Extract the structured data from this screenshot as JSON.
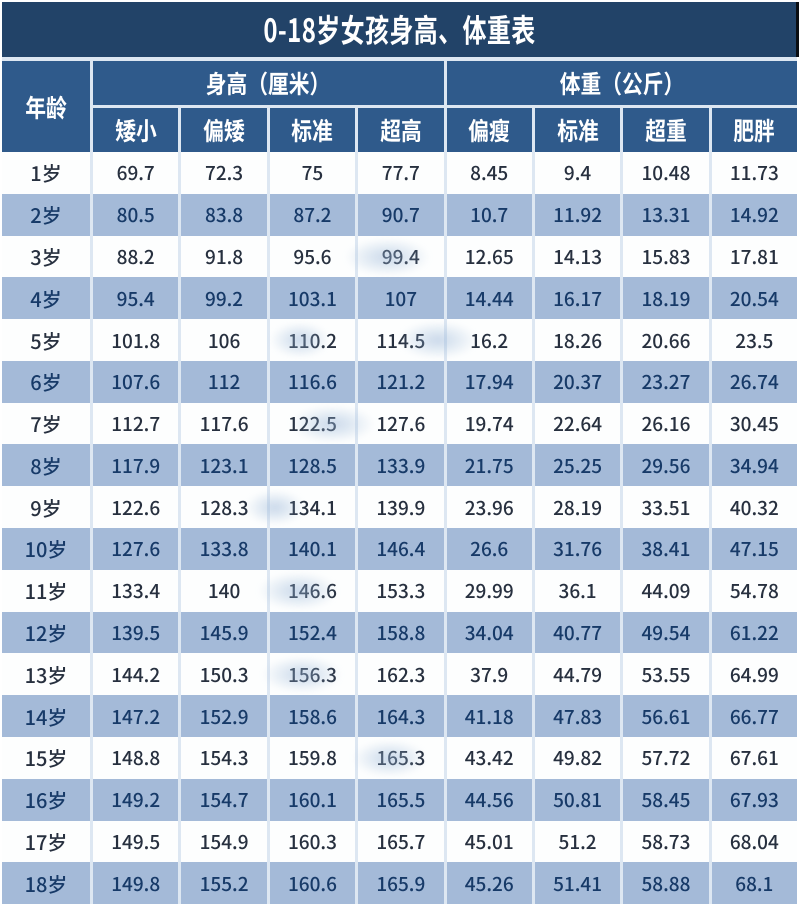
{
  "title": "0-18岁女孩身高、体重表",
  "table": {
    "age_header": "年龄",
    "groups": [
      {
        "label": "身高（厘米）",
        "sub": [
          "矮小",
          "偏矮",
          "标准",
          "超高"
        ]
      },
      {
        "label": "体重（公斤）",
        "sub": [
          "偏瘦",
          "标准",
          "超重",
          "肥胖"
        ]
      }
    ],
    "rows": [
      {
        "age": "1岁",
        "values": [
          "69.7",
          "72.3",
          "75",
          "77.7",
          "8.45",
          "9.4",
          "10.48",
          "11.73"
        ]
      },
      {
        "age": "2岁",
        "values": [
          "80.5",
          "83.8",
          "87.2",
          "90.7",
          "10.7",
          "11.92",
          "13.31",
          "14.92"
        ]
      },
      {
        "age": "3岁",
        "values": [
          "88.2",
          "91.8",
          "95.6",
          "99.4",
          "12.65",
          "14.13",
          "15.83",
          "17.81"
        ]
      },
      {
        "age": "4岁",
        "values": [
          "95.4",
          "99.2",
          "103.1",
          "107",
          "14.44",
          "16.17",
          "18.19",
          "20.54"
        ]
      },
      {
        "age": "5岁",
        "values": [
          "101.8",
          "106",
          "110.2",
          "114.5",
          "16.2",
          "18.26",
          "20.66",
          "23.5"
        ]
      },
      {
        "age": "6岁",
        "values": [
          "107.6",
          "112",
          "116.6",
          "121.2",
          "17.94",
          "20.37",
          "23.27",
          "26.74"
        ]
      },
      {
        "age": "7岁",
        "values": [
          "112.7",
          "117.6",
          "122.5",
          "127.6",
          "19.74",
          "22.64",
          "26.16",
          "30.45"
        ]
      },
      {
        "age": "8岁",
        "values": [
          "117.9",
          "123.1",
          "128.5",
          "133.9",
          "21.75",
          "25.25",
          "29.56",
          "34.94"
        ]
      },
      {
        "age": "9岁",
        "values": [
          "122.6",
          "128.3",
          "134.1",
          "139.9",
          "23.96",
          "28.19",
          "33.51",
          "40.32"
        ]
      },
      {
        "age": "10岁",
        "values": [
          "127.6",
          "133.8",
          "140.1",
          "146.4",
          "26.6",
          "31.76",
          "38.41",
          "47.15"
        ]
      },
      {
        "age": "11岁",
        "values": [
          "133.4",
          "140",
          "146.6",
          "153.3",
          "29.99",
          "36.1",
          "44.09",
          "54.78"
        ]
      },
      {
        "age": "12岁",
        "values": [
          "139.5",
          "145.9",
          "152.4",
          "158.8",
          "34.04",
          "40.77",
          "49.54",
          "61.22"
        ]
      },
      {
        "age": "13岁",
        "values": [
          "144.2",
          "150.3",
          "156.3",
          "162.3",
          "37.9",
          "44.79",
          "53.55",
          "64.99"
        ]
      },
      {
        "age": "14岁",
        "values": [
          "147.2",
          "152.9",
          "158.6",
          "164.3",
          "41.18",
          "47.83",
          "56.61",
          "66.77"
        ]
      },
      {
        "age": "15岁",
        "values": [
          "148.8",
          "154.3",
          "159.8",
          "165.3",
          "43.42",
          "49.82",
          "57.72",
          "67.61"
        ]
      },
      {
        "age": "16岁",
        "values": [
          "149.2",
          "154.7",
          "160.1",
          "165.5",
          "44.56",
          "50.81",
          "58.45",
          "67.93"
        ]
      },
      {
        "age": "17岁",
        "values": [
          "149.5",
          "154.9",
          "160.3",
          "165.7",
          "45.01",
          "51.2",
          "58.73",
          "68.04"
        ]
      },
      {
        "age": "18岁",
        "values": [
          "149.8",
          "155.2",
          "160.6",
          "165.9",
          "45.26",
          "51.41",
          "58.88",
          "68.1"
        ]
      }
    ]
  },
  "colors": {
    "title_bg": "#224368",
    "header_bg": "#2f5a8b",
    "row_blue": "#a4bad8",
    "row_white": "#fdfefe",
    "text_dark": "#27303f",
    "text_navy": "#173a68",
    "gap": "#dde7f2"
  },
  "chart_data": {
    "type": "table",
    "title": "0-18岁女孩身高、体重表",
    "columns": [
      "年龄",
      "身高(厘米) 矮小",
      "身高(厘米) 偏矮",
      "身高(厘米) 标准",
      "身高(厘米) 超高",
      "体重(公斤) 偏瘦",
      "体重(公斤) 标准",
      "体重(公斤) 超重",
      "体重(公斤) 肥胖"
    ],
    "rows": [
      [
        "1岁",
        69.7,
        72.3,
        75,
        77.7,
        8.45,
        9.4,
        10.48,
        11.73
      ],
      [
        "2岁",
        80.5,
        83.8,
        87.2,
        90.7,
        10.7,
        11.92,
        13.31,
        14.92
      ],
      [
        "3岁",
        88.2,
        91.8,
        95.6,
        99.4,
        12.65,
        14.13,
        15.83,
        17.81
      ],
      [
        "4岁",
        95.4,
        99.2,
        103.1,
        107,
        14.44,
        16.17,
        18.19,
        20.54
      ],
      [
        "5岁",
        101.8,
        106,
        110.2,
        114.5,
        16.2,
        18.26,
        20.66,
        23.5
      ],
      [
        "6岁",
        107.6,
        112,
        116.6,
        121.2,
        17.94,
        20.37,
        23.27,
        26.74
      ],
      [
        "7岁",
        112.7,
        117.6,
        122.5,
        127.6,
        19.74,
        22.64,
        26.16,
        30.45
      ],
      [
        "8岁",
        117.9,
        123.1,
        128.5,
        133.9,
        21.75,
        25.25,
        29.56,
        34.94
      ],
      [
        "9岁",
        122.6,
        128.3,
        134.1,
        139.9,
        23.96,
        28.19,
        33.51,
        40.32
      ],
      [
        "10岁",
        127.6,
        133.8,
        140.1,
        146.4,
        26.6,
        31.76,
        38.41,
        47.15
      ],
      [
        "11岁",
        133.4,
        140,
        146.6,
        153.3,
        29.99,
        36.1,
        44.09,
        54.78
      ],
      [
        "12岁",
        139.5,
        145.9,
        152.4,
        158.8,
        34.04,
        40.77,
        49.54,
        61.22
      ],
      [
        "13岁",
        144.2,
        150.3,
        156.3,
        162.3,
        37.9,
        44.79,
        53.55,
        64.99
      ],
      [
        "14岁",
        147.2,
        152.9,
        158.6,
        164.3,
        41.18,
        47.83,
        56.61,
        66.77
      ],
      [
        "15岁",
        148.8,
        154.3,
        159.8,
        165.3,
        43.42,
        49.82,
        57.72,
        67.61
      ],
      [
        "16岁",
        149.2,
        154.7,
        160.1,
        165.5,
        44.56,
        50.81,
        58.45,
        67.93
      ],
      [
        "17岁",
        149.5,
        154.9,
        160.3,
        165.7,
        45.01,
        51.2,
        58.73,
        68.04
      ],
      [
        "18岁",
        149.8,
        155.2,
        160.6,
        165.9,
        45.26,
        51.41,
        58.88,
        68.1
      ]
    ]
  }
}
